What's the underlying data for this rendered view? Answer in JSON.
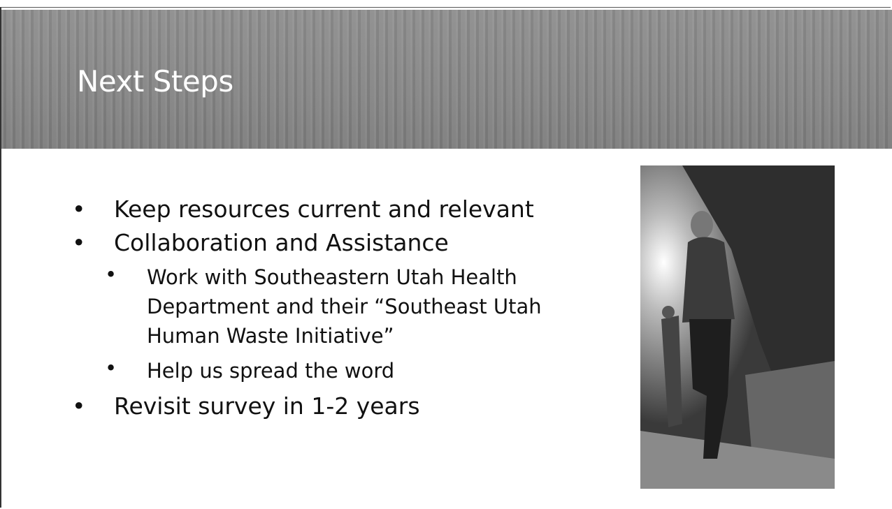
{
  "title": "Next Steps",
  "bullets": [
    {
      "text": "Keep resources current and relevant"
    },
    {
      "text": "Collaboration and Assistance",
      "subitems": [
        "Work with Southeastern Utah Health Department and their “Southeast Utah Human Waste Initiative”",
        "Help us spread the word"
      ]
    },
    {
      "text": "Revisit survey in 1-2 years"
    }
  ]
}
